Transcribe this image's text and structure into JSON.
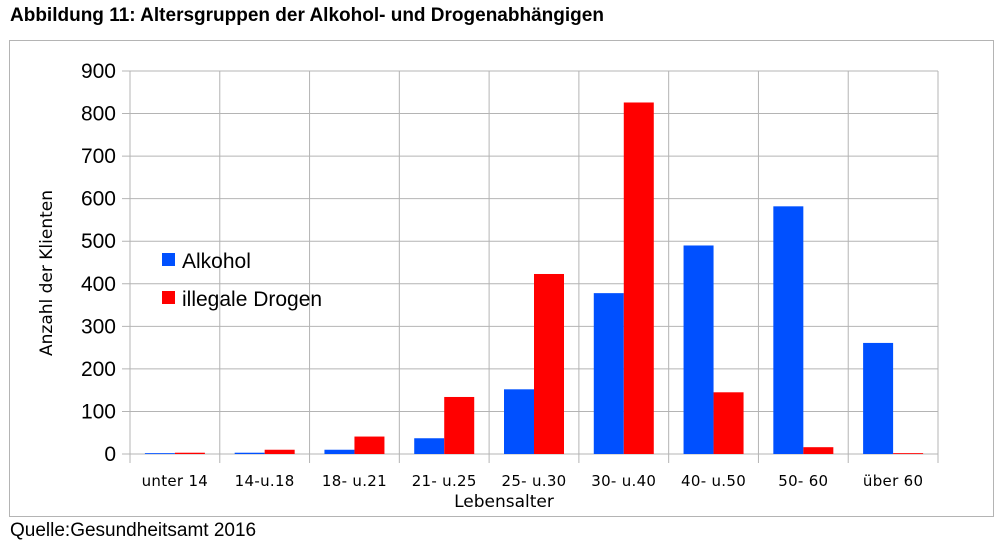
{
  "title": "Abbildung 11: Altersgruppen der Alkohol- und Drogenabhängigen",
  "source": "Quelle:Gesundheitsamt 2016",
  "chart_data": {
    "type": "bar",
    "categories": [
      "unter 14",
      "14-u.18",
      "18- u.21",
      "21- u.25",
      "25- u.30",
      "30- u.40",
      "40- u.50",
      "50- 60",
      "über 60"
    ],
    "series": [
      {
        "name": "Alkohol",
        "color": "#0050ff",
        "values": [
          2,
          3,
          10,
          37,
          152,
          378,
          490,
          582,
          261
        ]
      },
      {
        "name": "illegale Drogen",
        "color": "#ff0000",
        "values": [
          3,
          10,
          41,
          134,
          423,
          826,
          145,
          16,
          2
        ]
      }
    ],
    "xlabel": "Lebensalter",
    "ylabel": "Anzahl der Klienten",
    "ylim": [
      0,
      900
    ],
    "yticks": [
      0,
      100,
      200,
      300,
      400,
      500,
      600,
      700,
      800,
      900
    ],
    "grid": true,
    "legend_position": "left"
  }
}
